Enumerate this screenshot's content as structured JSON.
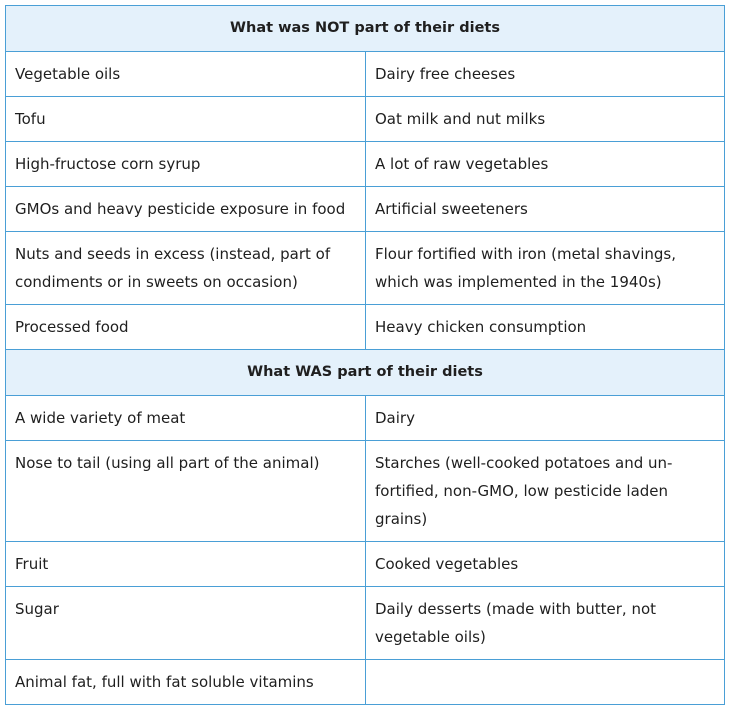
{
  "sections": [
    {
      "heading": "What was NOT part of their diets",
      "rows": [
        [
          "Vegetable oils",
          "Dairy free cheeses"
        ],
        [
          "Tofu",
          "Oat milk and nut milks"
        ],
        [
          "High-fructose corn syrup",
          "A lot of raw vegetables"
        ],
        [
          "GMOs and heavy pesticide exposure in food",
          "Artificial sweeteners"
        ],
        [
          "Nuts and seeds in excess (instead, part of condiments or in sweets on occasion)",
          "Flour fortified with iron (metal shavings, which was implemented in the 1940s)"
        ],
        [
          "Processed food",
          "Heavy chicken consumption"
        ]
      ]
    },
    {
      "heading": "What WAS part of their diets",
      "rows": [
        [
          "A wide variety of meat",
          "Dairy"
        ],
        [
          "Nose to tail (using all part of the animal)",
          "Starches (well-cooked potatoes and un-fortified, non-GMO, low pesticide laden grains)"
        ],
        [
          "Fruit",
          "Cooked vegetables"
        ],
        [
          "Sugar",
          "Daily desserts (made with butter, not vegetable oils)"
        ],
        [
          "Animal fat, full with fat soluble vitamins",
          ""
        ]
      ]
    }
  ]
}
